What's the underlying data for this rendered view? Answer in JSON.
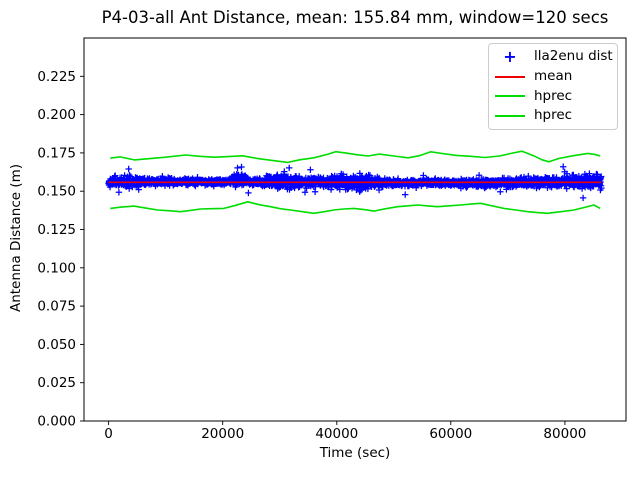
{
  "figure": {
    "background": "#ffffff"
  },
  "chart_data": {
    "type": "scatter",
    "title": "P4-03-all Ant Distance, mean: 155.84 mm, window=120 secs",
    "xlabel": "Time (sec)",
    "ylabel": "Antenna Distance (m)",
    "mean_mm": "155.84",
    "window_secs": "120",
    "grid": false,
    "legend_position": "upper right",
    "xlim": [
      -4320,
      90720
    ],
    "ylim": [
      0.0,
      0.25
    ],
    "xticks": [
      0,
      20000,
      40000,
      60000,
      80000
    ],
    "xtick_labels": [
      "0",
      "20000",
      "40000",
      "60000",
      "80000"
    ],
    "yticks": [
      0.0,
      0.025,
      0.05,
      0.075,
      0.1,
      0.125,
      0.15,
      0.175,
      0.2,
      0.225
    ],
    "ytick_labels": [
      "0.000",
      "0.025",
      "0.050",
      "0.075",
      "0.100",
      "0.125",
      "0.150",
      "0.175",
      "0.200",
      "0.225"
    ],
    "series": [
      {
        "name": "lla2enu dist",
        "style": "scatter",
        "marker": "+",
        "color": "#0000ff",
        "t_start": 0,
        "t_end": 86400,
        "n_points": 3000,
        "center": 0.15584,
        "center_wobble": 0.0004,
        "base_std": 0.00112,
        "spike_prob": 0.05,
        "spike_mult": 2.1,
        "bursts": [
          {
            "t0": 21500,
            "t1": 24200,
            "mult": 1.9,
            "bias": 0.0012
          },
          {
            "t0": 27500,
            "t1": 33500,
            "mult": 1.5,
            "bias": 0.0003
          },
          {
            "t0": 39000,
            "t1": 47500,
            "mult": 1.45,
            "bias": 0.0004
          },
          {
            "t0": 55500,
            "t1": 59500,
            "mult": 1.35,
            "bias": 0.0003
          },
          {
            "t0": 62500,
            "t1": 66500,
            "mult": 1.3,
            "bias": 0.0
          },
          {
            "t0": 79500,
            "t1": 86400,
            "mult": 1.55,
            "bias": 0.0
          }
        ],
        "outliers": [
          [
            1800,
            0.1493
          ],
          [
            22600,
            0.1652
          ],
          [
            23300,
            0.1658
          ],
          [
            24500,
            0.1489
          ],
          [
            30800,
            0.1628
          ],
          [
            36200,
            0.1496
          ],
          [
            52000,
            0.1478
          ],
          [
            83200,
            0.1456
          ]
        ]
      },
      {
        "name": "mean",
        "style": "hline",
        "color": "#ee0000",
        "value": 0.15584,
        "t_start": 0,
        "t_end": 86400
      },
      {
        "name": "hprec",
        "style": "line",
        "color": "#00dd00",
        "points": [
          [
            300,
            0.1716
          ],
          [
            2000,
            0.1724
          ],
          [
            4500,
            0.1704
          ],
          [
            7000,
            0.1712
          ],
          [
            10000,
            0.1722
          ],
          [
            13500,
            0.1736
          ],
          [
            16000,
            0.1728
          ],
          [
            18500,
            0.1722
          ],
          [
            21000,
            0.1726
          ],
          [
            23500,
            0.1731
          ],
          [
            26000,
            0.1714
          ],
          [
            28500,
            0.1702
          ],
          [
            31400,
            0.1688
          ],
          [
            33500,
            0.1705
          ],
          [
            36000,
            0.1718
          ],
          [
            38500,
            0.1742
          ],
          [
            39800,
            0.1758
          ],
          [
            41500,
            0.175
          ],
          [
            43500,
            0.1738
          ],
          [
            45500,
            0.173
          ],
          [
            47500,
            0.1742
          ],
          [
            50000,
            0.173
          ],
          [
            52500,
            0.1718
          ],
          [
            54500,
            0.1732
          ],
          [
            56500,
            0.1757
          ],
          [
            58500,
            0.1746
          ],
          [
            61000,
            0.1734
          ],
          [
            63500,
            0.1728
          ],
          [
            66000,
            0.172
          ],
          [
            68500,
            0.173
          ],
          [
            71000,
            0.175
          ],
          [
            72500,
            0.1761
          ],
          [
            74500,
            0.1732
          ],
          [
            76000,
            0.1705
          ],
          [
            77200,
            0.1692
          ],
          [
            79000,
            0.1714
          ],
          [
            81500,
            0.1732
          ],
          [
            84000,
            0.1747
          ],
          [
            85500,
            0.1738
          ],
          [
            86200,
            0.173
          ]
        ]
      },
      {
        "name": "hprec",
        "style": "line",
        "color": "#00dd00",
        "points": [
          [
            300,
            0.1388
          ],
          [
            2200,
            0.1396
          ],
          [
            4400,
            0.1403
          ],
          [
            6500,
            0.139
          ],
          [
            8600,
            0.1377
          ],
          [
            10800,
            0.1372
          ],
          [
            12600,
            0.1366
          ],
          [
            14500,
            0.1375
          ],
          [
            16100,
            0.1384
          ],
          [
            18000,
            0.1386
          ],
          [
            20200,
            0.1388
          ],
          [
            22300,
            0.1408
          ],
          [
            24400,
            0.1431
          ],
          [
            26400,
            0.1412
          ],
          [
            28400,
            0.1399
          ],
          [
            30200,
            0.1385
          ],
          [
            31900,
            0.1377
          ],
          [
            34000,
            0.1366
          ],
          [
            36000,
            0.1356
          ],
          [
            37800,
            0.1366
          ],
          [
            39500,
            0.1377
          ],
          [
            41200,
            0.1384
          ],
          [
            43000,
            0.1388
          ],
          [
            44800,
            0.138
          ],
          [
            46500,
            0.137
          ],
          [
            48600,
            0.1386
          ],
          [
            50700,
            0.1399
          ],
          [
            52500,
            0.1405
          ],
          [
            54200,
            0.141
          ],
          [
            56000,
            0.1404
          ],
          [
            57700,
            0.1399
          ],
          [
            59700,
            0.1405
          ],
          [
            61700,
            0.141
          ],
          [
            63500,
            0.1416
          ],
          [
            65200,
            0.1421
          ],
          [
            67200,
            0.1405
          ],
          [
            69300,
            0.1388
          ],
          [
            71400,
            0.1377
          ],
          [
            73500,
            0.1366
          ],
          [
            75200,
            0.136
          ],
          [
            77000,
            0.1356
          ],
          [
            79300,
            0.1366
          ],
          [
            81600,
            0.1377
          ],
          [
            83300,
            0.1393
          ],
          [
            85100,
            0.141
          ],
          [
            86200,
            0.1388
          ]
        ]
      }
    ]
  },
  "legend": {
    "entries": [
      {
        "label": "lla2enu dist",
        "marker": "plus",
        "marker_glyph": "+",
        "color": "#0000ff"
      },
      {
        "label": "mean",
        "marker": "line",
        "color": "#ee0000"
      },
      {
        "label": "hprec",
        "marker": "line",
        "color": "#00dd00"
      },
      {
        "label": "hprec",
        "marker": "line",
        "color": "#00dd00"
      }
    ]
  }
}
